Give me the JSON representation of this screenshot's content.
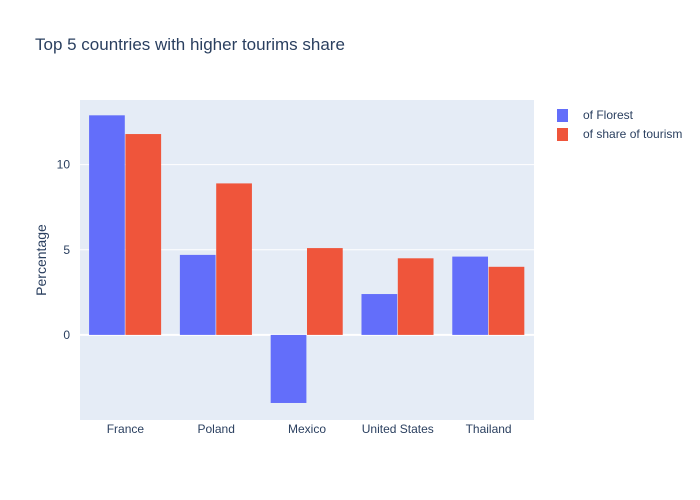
{
  "chart_data": {
    "type": "bar",
    "title": "Top 5 countries with higher tourims share",
    "xlabel": "",
    "ylabel": "Percentage",
    "categories": [
      "France",
      "Poland",
      "Mexico",
      "United States",
      "Thailand"
    ],
    "series": [
      {
        "name": "of Florest",
        "color": "#636efa",
        "values": [
          12.9,
          4.7,
          -4.0,
          2.4,
          4.6
        ]
      },
      {
        "name": "of share of tourism",
        "color": "#ef553b",
        "values": [
          11.8,
          8.9,
          5.1,
          4.5,
          4.0
        ]
      }
    ],
    "ylim": [
      -5,
      13.8
    ],
    "yticks": [
      0,
      5,
      10
    ],
    "grid": true,
    "legend_position": "top-right",
    "plot_background": "#e5ecf6"
  }
}
